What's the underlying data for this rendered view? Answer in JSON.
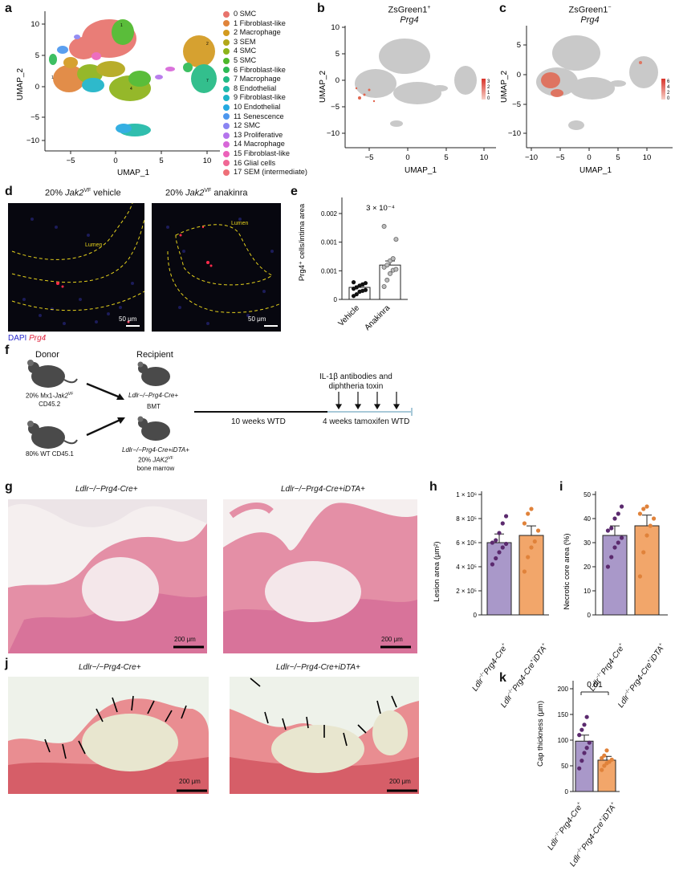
{
  "panels": {
    "a": "a",
    "b": "b",
    "c": "c",
    "d": "d",
    "e": "e",
    "f": "f",
    "g": "g",
    "h": "h",
    "i": "i",
    "j": "j",
    "k": "k"
  },
  "umap": {
    "xlabel": "UMAP_1",
    "ylabel": "UMAP_2",
    "a_yticks": [
      "10",
      "5",
      "0",
      "−5",
      "−10"
    ],
    "a_xticks": [
      "−5",
      "0",
      "5",
      "10"
    ],
    "b_title_line1": "ZsGreen1",
    "b_title_sup": "+",
    "b_title_line2": "Prg4",
    "b_yticks": [
      "10",
      "5",
      "0",
      "−5",
      "−10"
    ],
    "b_xticks": [
      "−5",
      "0",
      "5",
      "10"
    ],
    "b_scale": [
      "3",
      "2",
      "1",
      "0"
    ],
    "c_title_line1": "ZsGreen1",
    "c_title_sup": "−",
    "c_title_line2": "Prg4",
    "c_yticks": [
      "5",
      "0",
      "−5",
      "−10"
    ],
    "c_xticks": [
      "−10",
      "−5",
      "0",
      "5",
      "10"
    ],
    "c_scale": [
      "6",
      "4",
      "2",
      "0"
    ]
  },
  "legend": [
    {
      "label": "0 SMC",
      "color": "#e8736c"
    },
    {
      "label": "1 Fibroblast-like",
      "color": "#e0843a"
    },
    {
      "label": "2 Macrophage",
      "color": "#d39a1f"
    },
    {
      "label": "3 SEM",
      "color": "#b3a719"
    },
    {
      "label": "4 SMC",
      "color": "#8db319"
    },
    {
      "label": "5 SMC",
      "color": "#4db82a"
    },
    {
      "label": "6 Fibroblast-like",
      "color": "#2dba55"
    },
    {
      "label": "7 Macrophage",
      "color": "#22ba84"
    },
    {
      "label": "8 Endothelial",
      "color": "#1fb9a8"
    },
    {
      "label": "9 Fibroblast-like",
      "color": "#1db4c7"
    },
    {
      "label": "10 Endothelial",
      "color": "#24a9e0"
    },
    {
      "label": "11 Senescence",
      "color": "#4d97ee"
    },
    {
      "label": "12 SMC",
      "color": "#8a84f2"
    },
    {
      "label": "13 Proliferative",
      "color": "#b474ec"
    },
    {
      "label": "14 Macrophage",
      "color": "#d767d8"
    },
    {
      "label": "15 Fibroblast-like",
      "color": "#ec62ba"
    },
    {
      "label": "16 Glial cells",
      "color": "#f06795"
    },
    {
      "label": "17 SEM (intermediate)",
      "color": "#ee6f78"
    }
  ],
  "d": {
    "title_left": "20% ",
    "title_left_gene": "Jak2",
    "title_left_sup": "VF",
    "title_left_tail": " vehicle",
    "title_right_tail": " anakinra",
    "lumen": "Lumen",
    "scale": "50 μm",
    "stain_dapi": "DAPI",
    "stain_prg4": "Prg4"
  },
  "chart_data": [
    {
      "panel": "e",
      "type": "bar",
      "categories": [
        "Vehicle",
        "Anakinra"
      ],
      "values": [
        0.00028,
        0.0008
      ],
      "points": [
        [
          8e-05,
          0.00012,
          0.00018,
          0.0002,
          0.00022,
          0.00025,
          0.00028,
          0.00032,
          0.00035,
          0.00038,
          0.0004
        ],
        [
          0.0003,
          0.00045,
          0.0006,
          0.00068,
          0.0007,
          0.00075,
          0.0008,
          0.0009,
          0.00095,
          0.0014,
          0.0017
        ]
      ],
      "ylabel": "Prg4⁺ cells/intima area",
      "yticks": [
        "0",
        "0.001",
        "0.001",
        "0.002"
      ],
      "ylim": [
        0,
        0.002
      ],
      "annotation": "3 × 10⁻⁴"
    },
    {
      "panel": "h",
      "type": "bar",
      "categories": [
        "Ldlr−/− Prg4-Cre+",
        "Ldlr−/− Prg4-Cre+iDTA+"
      ],
      "values": [
        600000,
        660000
      ],
      "points": [
        [
          420000,
          470000,
          520000,
          560000,
          590000,
          600000,
          620000,
          680000,
          760000,
          820000
        ],
        [
          360000,
          480000,
          560000,
          610000,
          700000,
          760000,
          840000,
          880000
        ]
      ],
      "ylabel": "Lesion area (μm²)",
      "yticks": [
        "0",
        "2 × 10⁵",
        "4 × 10⁵",
        "6 × 10⁵",
        "8 × 10⁵",
        "1 × 10⁶"
      ],
      "ylim": [
        0,
        1000000
      ],
      "colors": [
        "#a998c9",
        "#f2a66a"
      ]
    },
    {
      "panel": "i",
      "type": "bar",
      "categories": [
        "Ldlr−/− Prg4-Cre+",
        "Ldlr−/− Prg4-Cre+iDTA+"
      ],
      "values": [
        33,
        37
      ],
      "points": [
        [
          20,
          24,
          28,
          30,
          32,
          35,
          36,
          40,
          42,
          45
        ],
        [
          16,
          26,
          33,
          37,
          40,
          42,
          44,
          45
        ]
      ],
      "ylabel": "Necrotic core area (%)",
      "yticks": [
        "0",
        "10",
        "20",
        "30",
        "40",
        "50"
      ],
      "ylim": [
        0,
        50
      ],
      "colors": [
        "#a998c9",
        "#f2a66a"
      ]
    },
    {
      "panel": "k",
      "type": "bar",
      "categories": [
        "Ldlr−/− Prg4-Cre+",
        "Ldlr−/− Prg4-Cre+iDTA+"
      ],
      "values": [
        98,
        61
      ],
      "points": [
        [
          45,
          60,
          75,
          85,
          95,
          110,
          120,
          130,
          145
        ],
        [
          42,
          50,
          55,
          58,
          62,
          65,
          70,
          80
        ]
      ],
      "ylabel": "Cap thickness (μm)",
      "yticks": [
        "0",
        "50",
        "100",
        "150",
        "200"
      ],
      "ylim": [
        0,
        200
      ],
      "annotation": "0.01",
      "colors": [
        "#a998c9",
        "#f2a66a"
      ]
    }
  ],
  "f": {
    "donor": "Donor",
    "recipient": "Recipient",
    "donor1_line1": "20% Mx1-",
    "donor1_gene": "Jak2",
    "donor1_sup": "VF",
    "donor1_line2": "CD45.2",
    "donor2": "80% WT CD45.1",
    "bmt": "BMT",
    "rec1": "Ldlr−/−Prg4-Cre+",
    "rec2": "Ldlr−/−Prg4-Cre+iDTA+",
    "rec2_sub1": "20% ",
    "rec2_sub_gene": "JAK2",
    "rec2_sub_sup": "VF",
    "rec2_sub2": "bone marrow",
    "treatment_line1": "IL-1β antibodies and",
    "treatment_line2": "diphtheria toxin",
    "phase1": "10 weeks WTD",
    "phase2": "4 weeks tamoxifen WTD"
  },
  "histology": {
    "left_title": "Ldlr−/−Prg4-Cre+",
    "right_title": "Ldlr−/−Prg4-Cre+iDTA+",
    "scale": "200 μm"
  },
  "groups": {
    "g1_base": "Ldlr",
    "g1_sup1": "−/−",
    "g1_mid": "Prg4-Cre",
    "g1_sup2": "+",
    "g2_tail": "iDTA",
    "g2_sup": "+"
  }
}
